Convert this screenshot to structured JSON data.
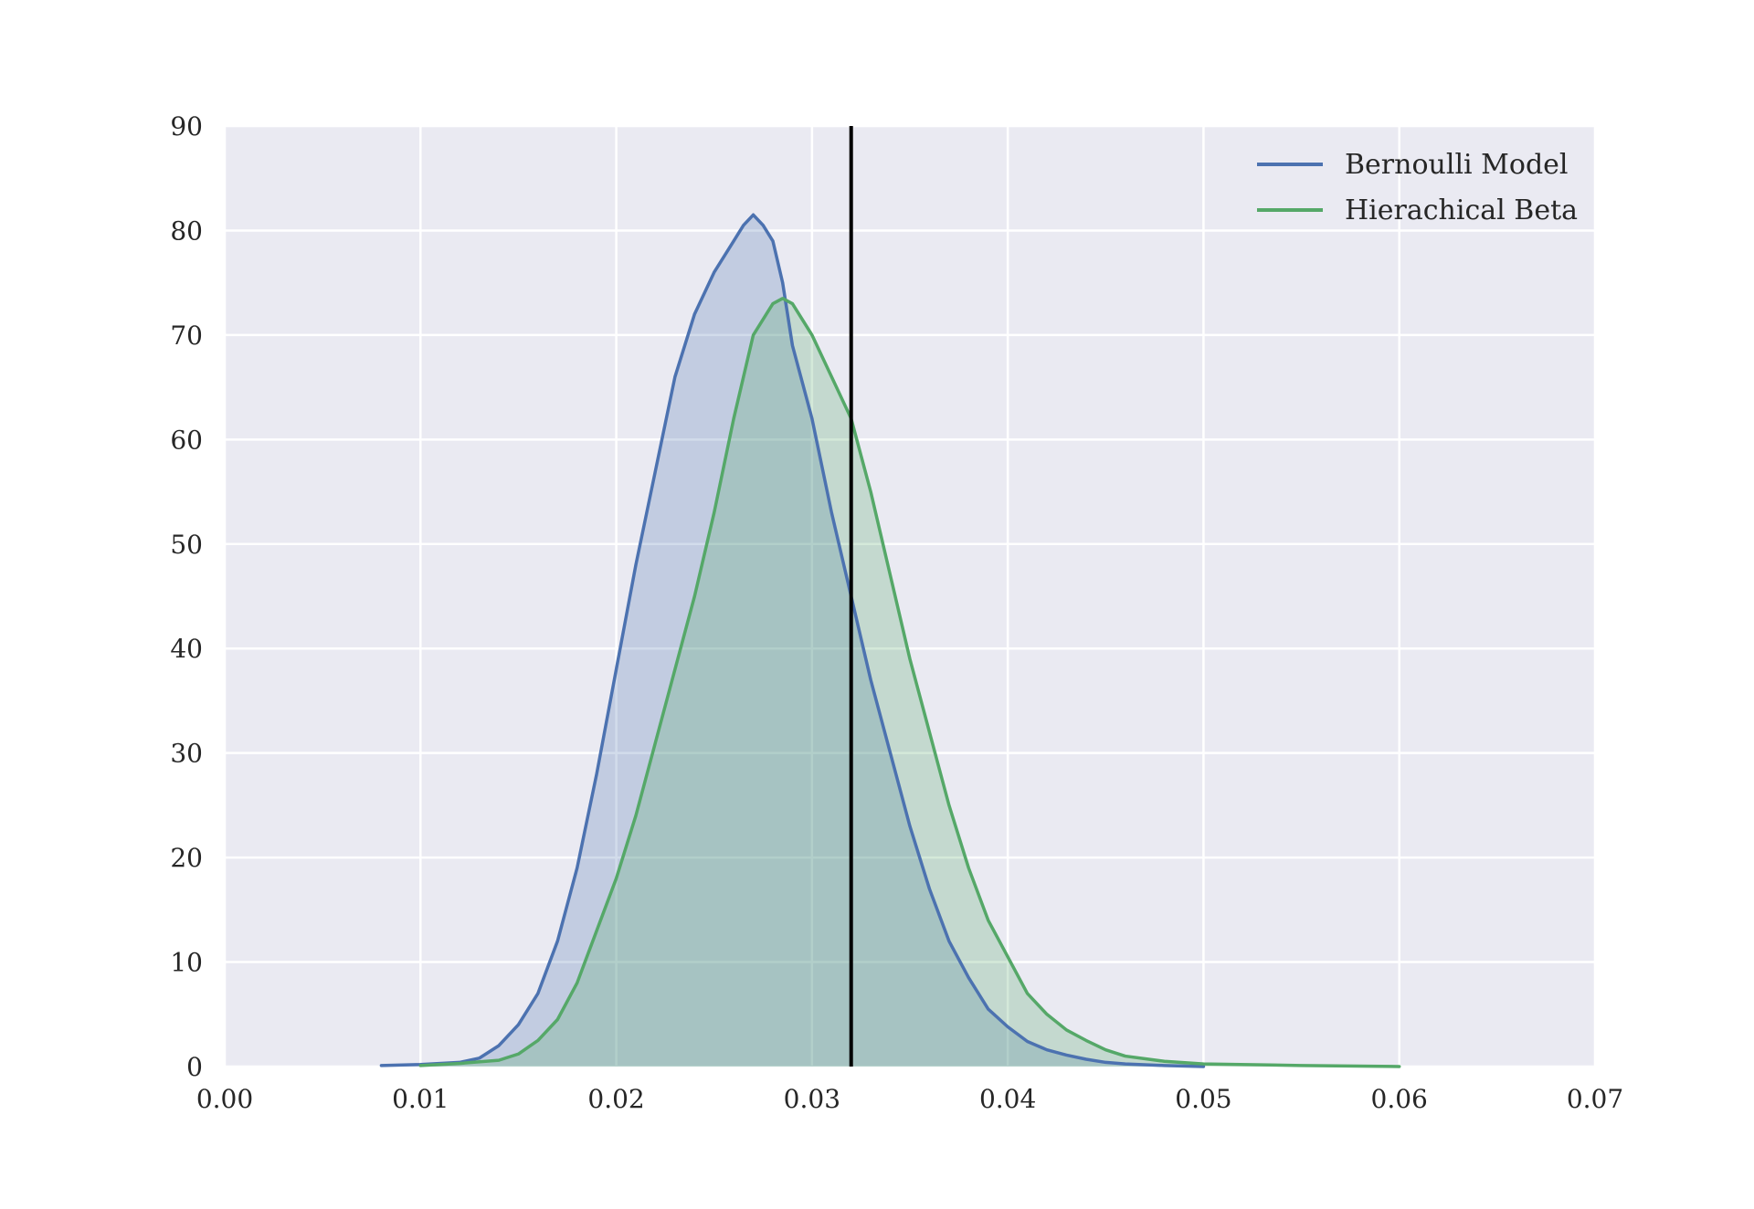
{
  "chart_data": {
    "type": "area",
    "title": "",
    "xlabel": "",
    "ylabel": "",
    "xlim": [
      0.0,
      0.07
    ],
    "ylim": [
      0,
      90
    ],
    "x_ticks": [
      0.0,
      0.01,
      0.02,
      0.03,
      0.04,
      0.05,
      0.06,
      0.07
    ],
    "x_tick_labels": [
      "0.00",
      "0.01",
      "0.02",
      "0.03",
      "0.04",
      "0.05",
      "0.06",
      "0.07"
    ],
    "y_ticks": [
      0,
      10,
      20,
      30,
      40,
      50,
      60,
      70,
      80,
      90
    ],
    "y_tick_labels": [
      "0",
      "10",
      "20",
      "30",
      "40",
      "50",
      "60",
      "70",
      "80",
      "90"
    ],
    "grid": true,
    "legend_position": "top-right",
    "background_color": "#EAEAF2",
    "grid_color": "#FFFFFF",
    "vertical_reference_line": {
      "x": 0.032,
      "color": "#000000"
    },
    "series": [
      {
        "name": "Bernoulli Model",
        "color": "#4C72B0",
        "fill_color": "#4C72B0",
        "x": [
          0.008,
          0.01,
          0.012,
          0.013,
          0.014,
          0.015,
          0.016,
          0.017,
          0.018,
          0.019,
          0.02,
          0.021,
          0.022,
          0.023,
          0.024,
          0.025,
          0.026,
          0.0265,
          0.027,
          0.0275,
          0.028,
          0.0285,
          0.029,
          0.03,
          0.031,
          0.032,
          0.033,
          0.034,
          0.035,
          0.036,
          0.037,
          0.038,
          0.039,
          0.04,
          0.041,
          0.042,
          0.043,
          0.044,
          0.045,
          0.046,
          0.048,
          0.05
        ],
        "y": [
          0.1,
          0.2,
          0.4,
          0.8,
          2.0,
          4.0,
          7.0,
          12.0,
          19.0,
          28.0,
          38.0,
          48.0,
          57.0,
          66.0,
          72.0,
          76.0,
          79.0,
          80.5,
          81.5,
          80.5,
          79.0,
          75.0,
          69.0,
          62.0,
          53.0,
          45.0,
          37.0,
          30.0,
          23.0,
          17.0,
          12.0,
          8.5,
          5.5,
          3.8,
          2.4,
          1.6,
          1.1,
          0.7,
          0.4,
          0.25,
          0.1,
          0.0
        ]
      },
      {
        "name": "Hierachical Beta",
        "color": "#55A868",
        "fill_color": "#55A868",
        "x": [
          0.01,
          0.012,
          0.014,
          0.015,
          0.016,
          0.017,
          0.018,
          0.019,
          0.02,
          0.021,
          0.022,
          0.023,
          0.024,
          0.025,
          0.026,
          0.027,
          0.028,
          0.0285,
          0.029,
          0.03,
          0.031,
          0.032,
          0.033,
          0.034,
          0.035,
          0.036,
          0.037,
          0.038,
          0.039,
          0.04,
          0.041,
          0.042,
          0.043,
          0.044,
          0.045,
          0.046,
          0.048,
          0.05,
          0.055,
          0.06
        ],
        "y": [
          0.1,
          0.3,
          0.6,
          1.2,
          2.5,
          4.5,
          8.0,
          13.0,
          18.0,
          24.0,
          31.0,
          38.0,
          45.0,
          53.0,
          62.0,
          70.0,
          73.0,
          73.5,
          73.0,
          70.0,
          66.0,
          62.0,
          55.0,
          47.0,
          39.0,
          32.0,
          25.0,
          19.0,
          14.0,
          10.5,
          7.0,
          5.0,
          3.5,
          2.5,
          1.6,
          1.0,
          0.5,
          0.25,
          0.1,
          0.0
        ]
      }
    ]
  }
}
